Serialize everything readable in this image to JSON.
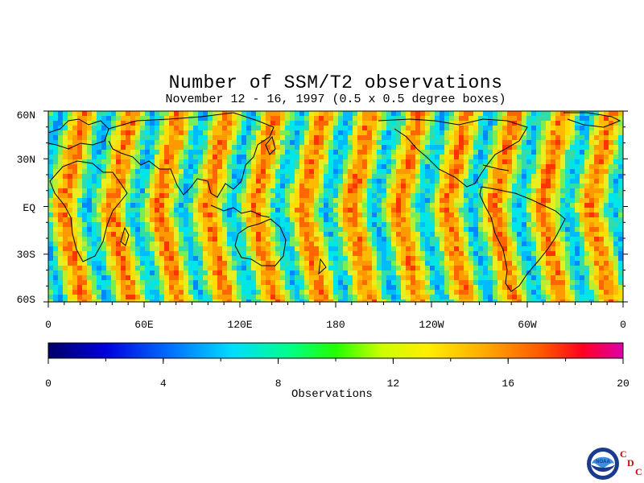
{
  "title": "Number of SSM/T2 observations",
  "subtitle": "November 12 - 16, 1997 (0.5 x 0.5 degree boxes)",
  "colorbar": {
    "label": "Observations",
    "ticks": [
      "0",
      "4",
      "8",
      "12",
      "16",
      "20"
    ],
    "range": [
      0,
      20
    ],
    "colors": [
      "#000066",
      "#0000cc",
      "#0055ff",
      "#00aaff",
      "#00ffee",
      "#00ff88",
      "#33ff00",
      "#bbff00",
      "#ffff00",
      "#ffcc00",
      "#ff9900",
      "#ff5500",
      "#ff0000",
      "#ee0077",
      "#dd00aa"
    ]
  },
  "lat_labels": [
    "60N",
    "30N",
    "EQ",
    "30S",
    "60S"
  ],
  "lon_labels": [
    "0",
    "60E",
    "120E",
    "180",
    "120W",
    "60W",
    "0"
  ],
  "logo": {
    "icon": "noaa-logo",
    "text": "NOAA",
    "cdc": [
      "C",
      "D",
      "C"
    ]
  }
}
